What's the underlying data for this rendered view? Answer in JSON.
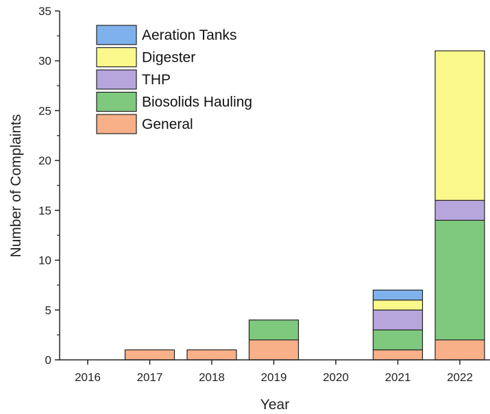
{
  "chart_data": {
    "type": "bar",
    "stacked": true,
    "categories": [
      "2016",
      "2017",
      "2018",
      "2019",
      "2020",
      "2021",
      "2022"
    ],
    "series": [
      {
        "name": "General",
        "values": [
          0,
          1,
          1,
          2,
          0,
          1,
          2
        ],
        "color": "#f8b088"
      },
      {
        "name": "Biosolids Hauling",
        "values": [
          0,
          0,
          0,
          2,
          0,
          2,
          12
        ],
        "color": "#7ec97e"
      },
      {
        "name": "THP",
        "values": [
          0,
          0,
          0,
          0,
          0,
          2,
          2
        ],
        "color": "#b7a6dc"
      },
      {
        "name": "Digester",
        "values": [
          0,
          0,
          0,
          0,
          0,
          1,
          15
        ],
        "color": "#fbf98c"
      },
      {
        "name": "Aeration Tanks",
        "values": [
          0,
          0,
          0,
          0,
          0,
          1,
          0
        ],
        "color": "#7fb2ec"
      }
    ],
    "legend_order": [
      "Aeration Tanks",
      "Digester",
      "THP",
      "Biosolids Hauling",
      "General"
    ],
    "xlabel": "Year",
    "ylabel": "Number of Complaints",
    "ylim": [
      0,
      35
    ],
    "yticks": [
      0,
      5,
      10,
      15,
      20,
      25,
      30,
      35
    ],
    "grid": false,
    "legend_position": "top-left"
  }
}
